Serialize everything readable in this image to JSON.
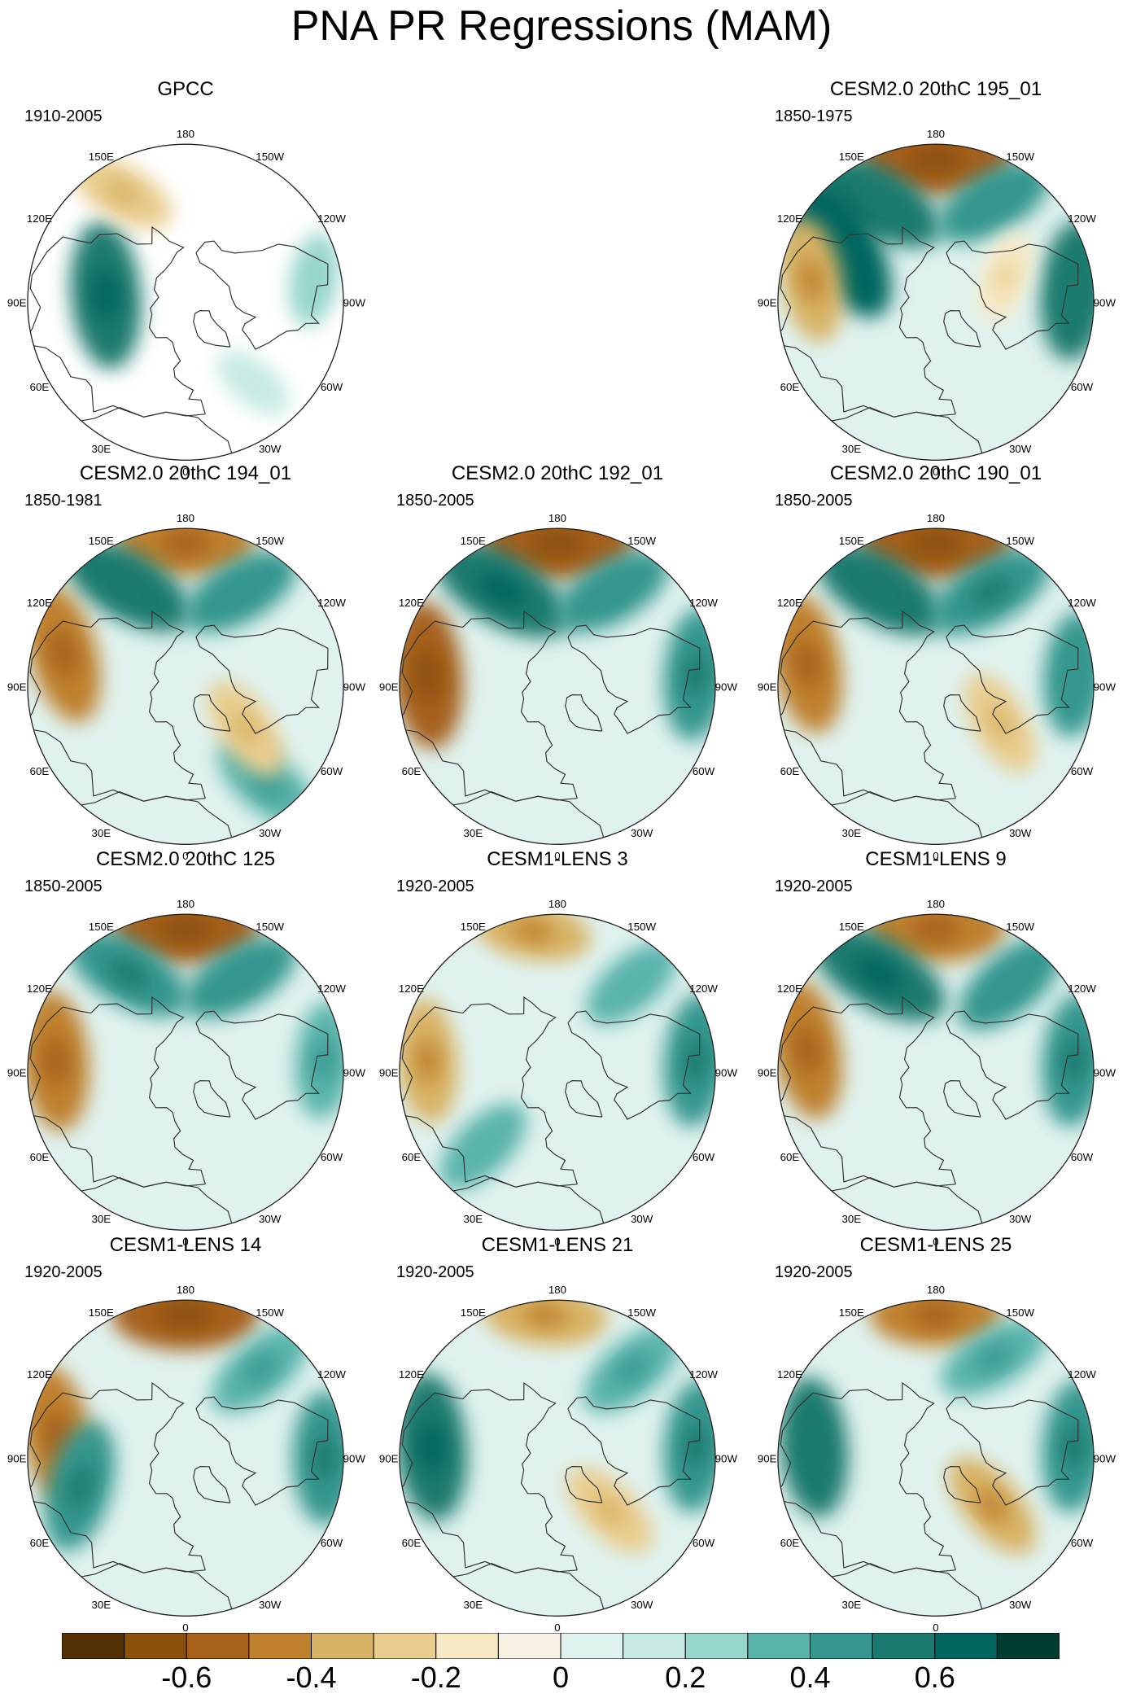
{
  "title": "PNA PR Regressions (MAM)",
  "chart_data": {
    "type": "heatmap",
    "projection": "north polar stereographic",
    "variable": "precipitation regression onto PNA index",
    "title": "PNA PR Regressions (MAM)",
    "longitude_labels": [
      "180",
      "150E",
      "120E",
      "90E",
      "60E",
      "30E",
      "0",
      "30W",
      "60W",
      "90W",
      "120W",
      "150W"
    ],
    "colorbar": {
      "levels": [
        -0.7,
        -0.6,
        -0.5,
        -0.4,
        -0.3,
        -0.2,
        -0.1,
        0,
        0.1,
        0.2,
        0.3,
        0.4,
        0.5,
        0.6,
        0.7
      ],
      "tick_labels": [
        {
          "text": "-0.6",
          "value": -0.6
        },
        {
          "text": "-0.4",
          "value": -0.4
        },
        {
          "text": "-0.2",
          "value": -0.2
        },
        {
          "text": "0",
          "value": 0
        },
        {
          "text": "0.2",
          "value": 0.2
        },
        {
          "text": "0.4",
          "value": 0.4
        },
        {
          "text": "0.6",
          "value": 0.6
        }
      ],
      "colors": [
        "#543005",
        "#8c510a",
        "#a6611a",
        "#bf812d",
        "#d8b365",
        "#e9cd8f",
        "#f6e8c3",
        "#f5f0e1",
        "#e0f2ef",
        "#c7eae5",
        "#97d6cc",
        "#5ab4ac",
        "#35978f",
        "#1b7a6e",
        "#01665e",
        "#003c30"
      ]
    },
    "panels": [
      {
        "name": "GPCC",
        "period": "1910-2005",
        "features": [
          {
            "type": "positive",
            "lon": 95,
            "lat": 52,
            "value": 0.55
          },
          {
            "type": "negative",
            "lon": 150,
            "lat": 30,
            "value": -0.3
          },
          {
            "type": "positive",
            "lon": -100,
            "lat": 28,
            "value": 0.2
          },
          {
            "type": "positive",
            "lon": -40,
            "lat": 40,
            "value": 0.15
          }
        ]
      },
      {
        "name": "CESM2.0 20thC 195_01",
        "period": "1850-1975",
        "features": [
          {
            "type": "negative",
            "lon": 180,
            "lat": 22,
            "value": -0.6
          },
          {
            "type": "positive",
            "lon": 150,
            "lat": 35,
            "value": 0.5
          },
          {
            "type": "positive",
            "lon": -150,
            "lat": 35,
            "value": 0.4
          },
          {
            "type": "positive",
            "lon": 120,
            "lat": 38,
            "value": 0.6
          },
          {
            "type": "positive",
            "lon": -95,
            "lat": 24,
            "value": 0.5
          },
          {
            "type": "negative",
            "lon": -110,
            "lat": 55,
            "value": -0.2
          },
          {
            "type": "negative",
            "lon": 100,
            "lat": 30,
            "value": -0.4
          }
        ]
      },
      {
        "name": "CESM2.0 20thC 194_01",
        "period": "1850-1981",
        "features": [
          {
            "type": "negative",
            "lon": 180,
            "lat": 22,
            "value": -0.5
          },
          {
            "type": "positive",
            "lon": 150,
            "lat": 35,
            "value": 0.5
          },
          {
            "type": "positive",
            "lon": -150,
            "lat": 38,
            "value": 0.4
          },
          {
            "type": "positive",
            "lon": -40,
            "lat": 30,
            "value": 0.35
          },
          {
            "type": "negative",
            "lon": -55,
            "lat": 55,
            "value": -0.3
          },
          {
            "type": "negative",
            "lon": 105,
            "lat": 30,
            "value": -0.5
          }
        ]
      },
      {
        "name": "CESM2.0 20thC 192_01",
        "period": "1850-2005",
        "features": [
          {
            "type": "negative",
            "lon": 180,
            "lat": 22,
            "value": -0.6
          },
          {
            "type": "positive",
            "lon": 150,
            "lat": 37,
            "value": 0.55
          },
          {
            "type": "positive",
            "lon": -150,
            "lat": 38,
            "value": 0.4
          },
          {
            "type": "positive",
            "lon": -95,
            "lat": 24,
            "value": 0.45
          },
          {
            "type": "negative",
            "lon": 95,
            "lat": 28,
            "value": -0.55
          }
        ]
      },
      {
        "name": "CESM2.0 20thC 190_01",
        "period": "1850-2005",
        "features": [
          {
            "type": "negative",
            "lon": 180,
            "lat": 22,
            "value": -0.6
          },
          {
            "type": "positive",
            "lon": 150,
            "lat": 37,
            "value": 0.5
          },
          {
            "type": "positive",
            "lon": -150,
            "lat": 38,
            "value": 0.45
          },
          {
            "type": "positive",
            "lon": -95,
            "lat": 24,
            "value": 0.4
          },
          {
            "type": "negative",
            "lon": -60,
            "lat": 55,
            "value": -0.3
          },
          {
            "type": "negative",
            "lon": 100,
            "lat": 28,
            "value": -0.5
          }
        ]
      },
      {
        "name": "CESM2.0 20thC 125",
        "period": "1850-2005",
        "features": [
          {
            "type": "negative",
            "lon": 180,
            "lat": 22,
            "value": -0.55
          },
          {
            "type": "positive",
            "lon": 150,
            "lat": 36,
            "value": 0.45
          },
          {
            "type": "positive",
            "lon": -150,
            "lat": 38,
            "value": 0.4
          },
          {
            "type": "positive",
            "lon": -95,
            "lat": 24,
            "value": 0.35
          },
          {
            "type": "negative",
            "lon": 95,
            "lat": 28,
            "value": -0.5
          }
        ]
      },
      {
        "name": "CESM1-LENS 3",
        "period": "1920-2005",
        "features": [
          {
            "type": "negative",
            "lon": 170,
            "lat": 22,
            "value": -0.35
          },
          {
            "type": "positive",
            "lon": -140,
            "lat": 35,
            "value": 0.3
          },
          {
            "type": "positive",
            "lon": -95,
            "lat": 24,
            "value": 0.45
          },
          {
            "type": "negative",
            "lon": 95,
            "lat": 28,
            "value": -0.4
          },
          {
            "type": "positive",
            "lon": 45,
            "lat": 40,
            "value": 0.3
          }
        ]
      },
      {
        "name": "CESM1-LENS 9",
        "period": "1920-2005",
        "features": [
          {
            "type": "negative",
            "lon": 180,
            "lat": 22,
            "value": -0.5
          },
          {
            "type": "positive",
            "lon": 150,
            "lat": 36,
            "value": 0.55
          },
          {
            "type": "positive",
            "lon": -140,
            "lat": 35,
            "value": 0.4
          },
          {
            "type": "positive",
            "lon": -95,
            "lat": 24,
            "value": 0.45
          },
          {
            "type": "negative",
            "lon": 100,
            "lat": 28,
            "value": -0.5
          }
        ]
      },
      {
        "name": "CESM1-LENS 14",
        "period": "1920-2005",
        "features": [
          {
            "type": "negative",
            "lon": 180,
            "lat": 22,
            "value": -0.55
          },
          {
            "type": "positive",
            "lon": -140,
            "lat": 35,
            "value": 0.35
          },
          {
            "type": "positive",
            "lon": -90,
            "lat": 24,
            "value": 0.45
          },
          {
            "type": "negative",
            "lon": 100,
            "lat": 28,
            "value": -0.5
          },
          {
            "type": "positive",
            "lon": 75,
            "lat": 38,
            "value": 0.45
          }
        ]
      },
      {
        "name": "CESM1-LENS 21",
        "period": "1920-2005",
        "features": [
          {
            "type": "negative",
            "lon": 175,
            "lat": 22,
            "value": -0.4
          },
          {
            "type": "positive",
            "lon": -140,
            "lat": 35,
            "value": 0.35
          },
          {
            "type": "positive",
            "lon": -95,
            "lat": 24,
            "value": 0.45
          },
          {
            "type": "positive",
            "lon": 95,
            "lat": 30,
            "value": 0.55
          },
          {
            "type": "negative",
            "lon": -45,
            "lat": 55,
            "value": -0.3
          }
        ]
      },
      {
        "name": "CESM1-LENS 25",
        "period": "1920-2005",
        "features": [
          {
            "type": "negative",
            "lon": 180,
            "lat": 22,
            "value": -0.45
          },
          {
            "type": "positive",
            "lon": -150,
            "lat": 35,
            "value": 0.35
          },
          {
            "type": "positive",
            "lon": -95,
            "lat": 24,
            "value": 0.45
          },
          {
            "type": "positive",
            "lon": 95,
            "lat": 32,
            "value": 0.5
          },
          {
            "type": "negative",
            "lon": -50,
            "lat": 55,
            "value": -0.35
          }
        ]
      }
    ]
  }
}
